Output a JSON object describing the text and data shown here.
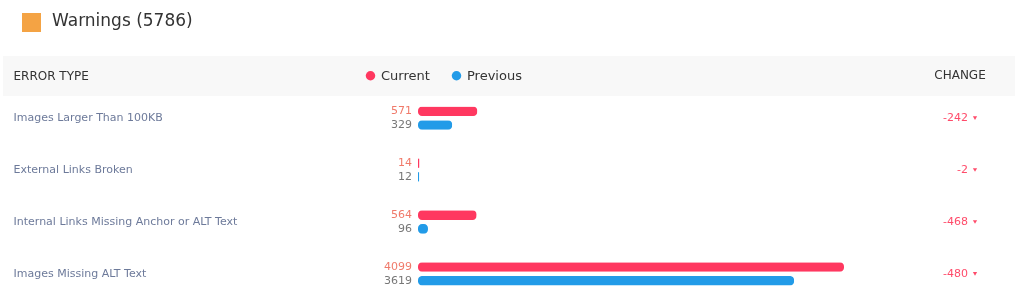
{
  "chart_data": {
    "type": "bar",
    "orientation": "horizontal",
    "title": "Warnings (5786)",
    "ylabel": "ERROR TYPE",
    "categories": [
      "Images Larger Than 100KB",
      "External Links Broken",
      "Internal Links Missing Anchor or ALT Text",
      "Images Missing ALT Text"
    ],
    "series": [
      {
        "name": "Current",
        "color": "#ff3860",
        "values": [
          571,
          14,
          564,
          4099
        ]
      },
      {
        "name": "Previous",
        "color": "#229be8",
        "values": [
          329,
          12,
          96,
          3619
        ]
      }
    ],
    "data_labels": true,
    "legend": "top",
    "annotations": [
      "CHANGE",
      "-242",
      "-2",
      "-468",
      "-480"
    ]
  }
}
